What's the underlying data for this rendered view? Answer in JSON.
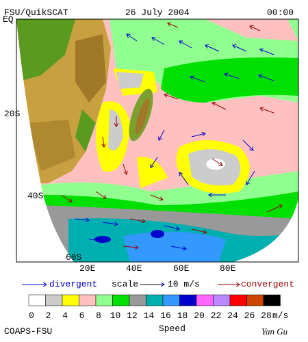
{
  "header": {
    "title": "FSU/QuikSCAT",
    "date": "26 July 2004",
    "time": "00:00"
  },
  "map": {
    "lat_labels": [
      "EQ",
      "20S",
      "40S",
      "60S"
    ],
    "lon_labels": [
      "20E",
      "40E",
      "60E",
      "80E"
    ]
  },
  "legend": {
    "divergent": "divergent",
    "scale": "scale",
    "scale_value": "10 m/s",
    "convergent": "convergent"
  },
  "colorbar": {
    "labels": [
      0,
      2,
      4,
      6,
      8,
      10,
      12,
      14,
      16,
      18,
      20,
      22,
      24,
      26,
      28
    ],
    "unit": "m/s",
    "title": "Speed"
  },
  "footer": {
    "credit": "COAPS-FSU",
    "author": "Yan Gu"
  }
}
